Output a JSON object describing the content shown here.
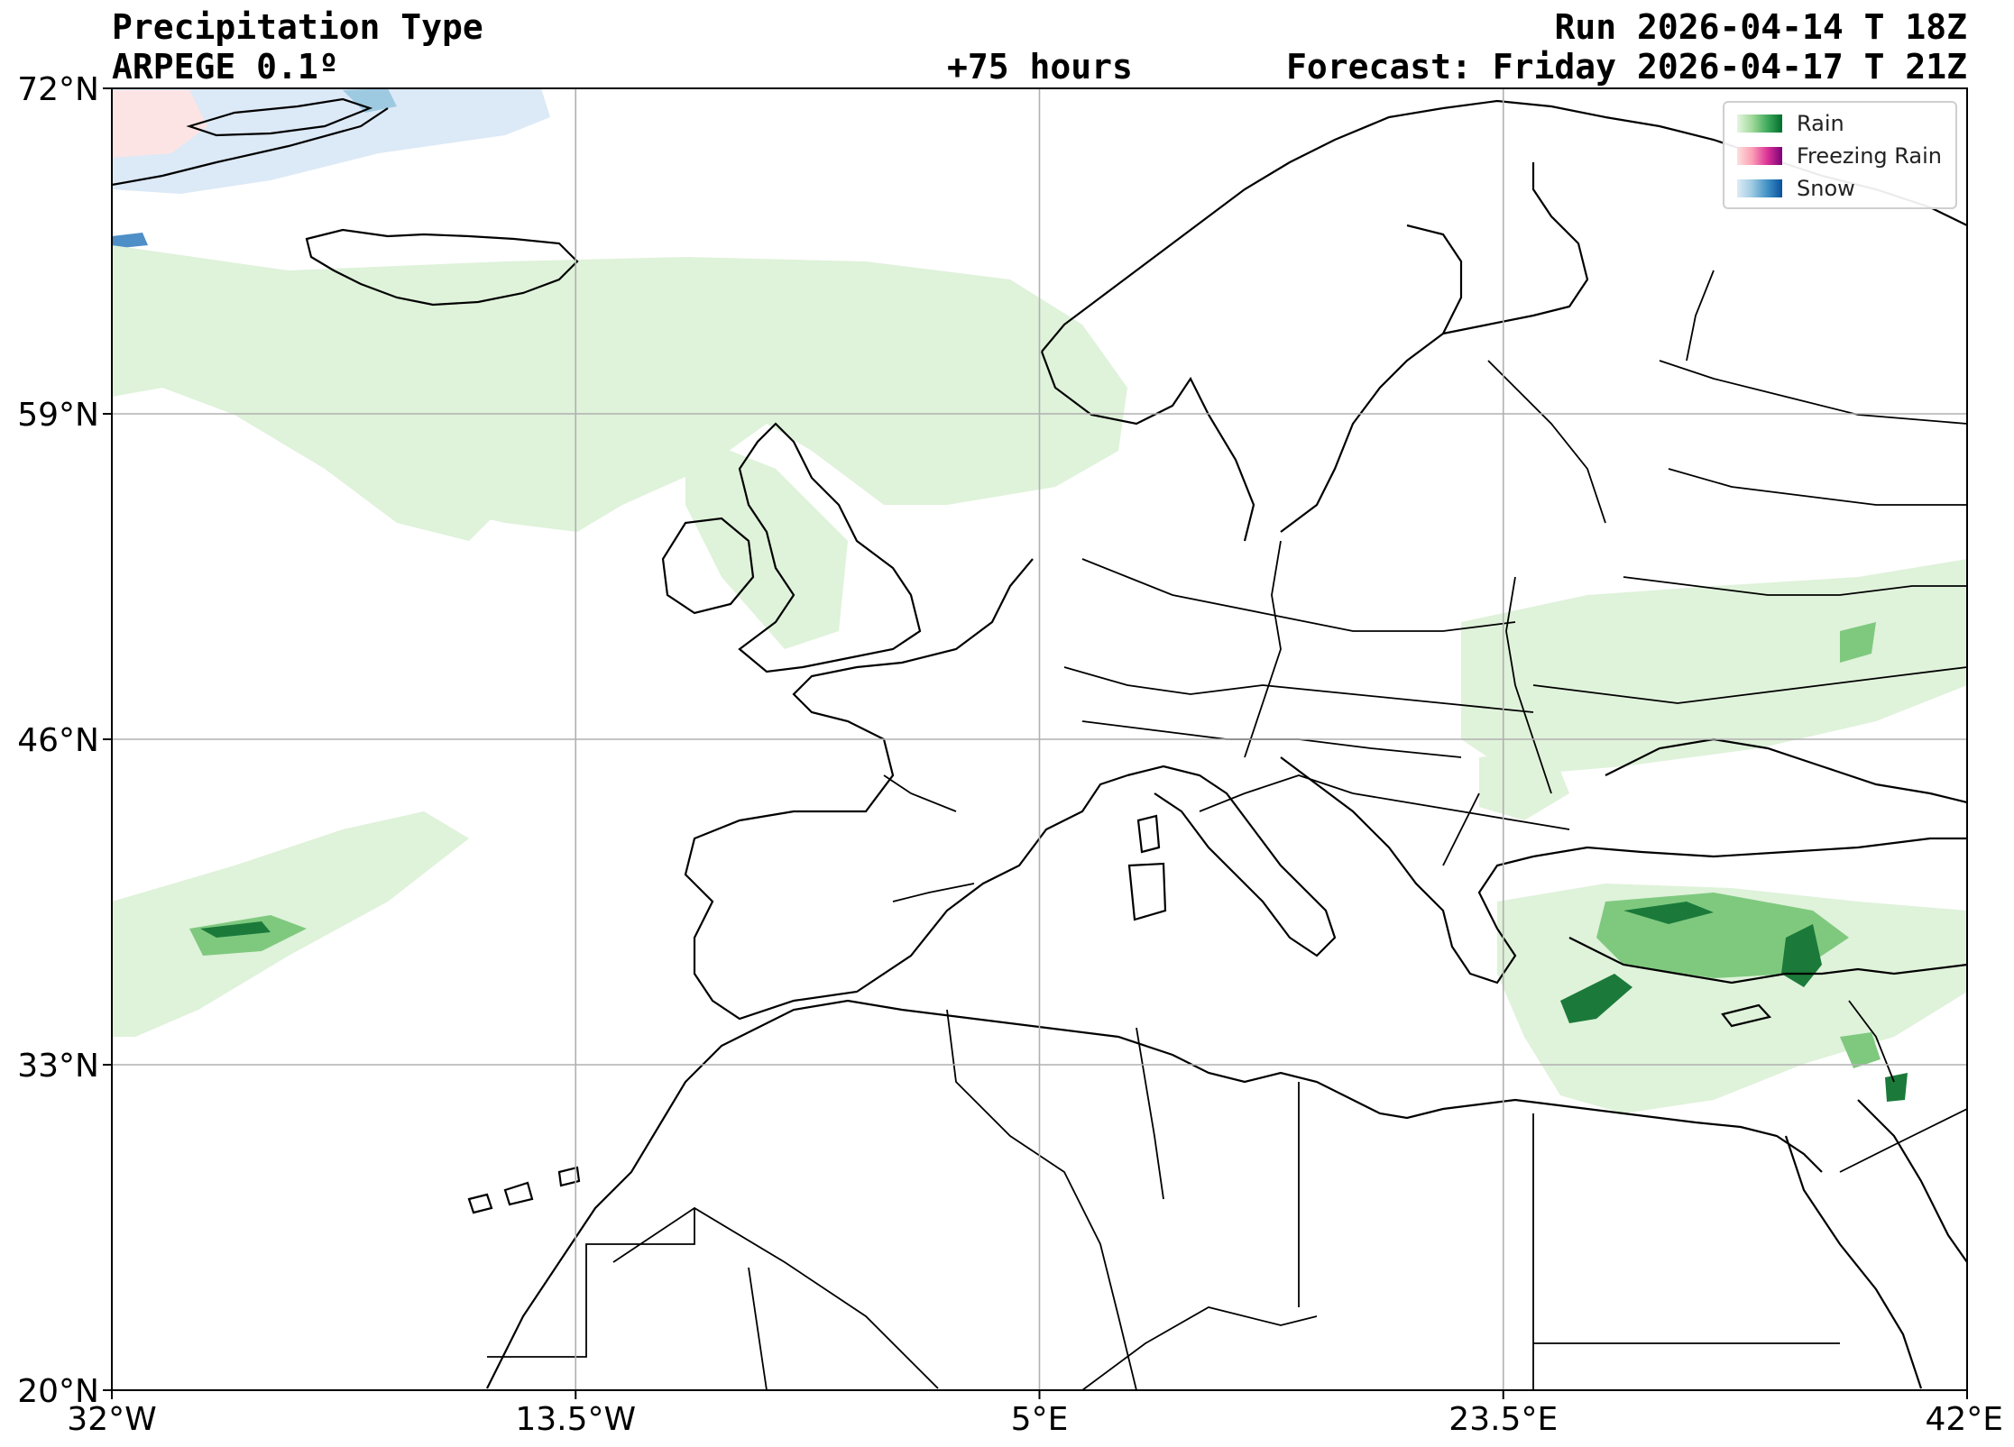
{
  "header": {
    "title": "Precipitation Type",
    "model": "ARPEGE 0.1º",
    "lead": "+75 hours",
    "run": "Run 2026-04-14 T 18Z",
    "forecast": "Forecast: Friday 2026-04-17 T 21Z"
  },
  "map": {
    "lat_range": [
      20,
      72
    ],
    "lon_range": [
      -32,
      42
    ],
    "lat_ticks": [
      {
        "value": 72,
        "label": "72°N"
      },
      {
        "value": 59,
        "label": "59°N"
      },
      {
        "value": 46,
        "label": "46°N"
      },
      {
        "value": 33,
        "label": "33°N"
      },
      {
        "value": 20,
        "label": "20°N"
      }
    ],
    "lon_ticks": [
      {
        "value": -32,
        "label": "32°W"
      },
      {
        "value": -13.5,
        "label": "13.5°W"
      },
      {
        "value": 5,
        "label": "5°E"
      },
      {
        "value": 23.5,
        "label": "23.5°E"
      },
      {
        "value": 42,
        "label": "42°E"
      }
    ],
    "grid": true
  },
  "legend": {
    "items": [
      {
        "label": "Rain",
        "colors": [
          "#e5f5e0",
          "#a1d99b",
          "#41ab5d",
          "#006d2c"
        ]
      },
      {
        "label": "Freezing Rain",
        "colors": [
          "#fde0dd",
          "#fa9fb5",
          "#dd3497",
          "#7a0177"
        ]
      },
      {
        "label": "Snow",
        "colors": [
          "#deebf7",
          "#9ecae1",
          "#4292c6",
          "#08519c"
        ]
      }
    ]
  },
  "colors": {
    "rain_light": "#dff2da",
    "rain_mid": "#7fc97f",
    "rain_dark": "#1b7a3a",
    "snow_light": "#dce9f6",
    "freezing_light": "#fde4e4",
    "grid": "#b0b0b0"
  }
}
